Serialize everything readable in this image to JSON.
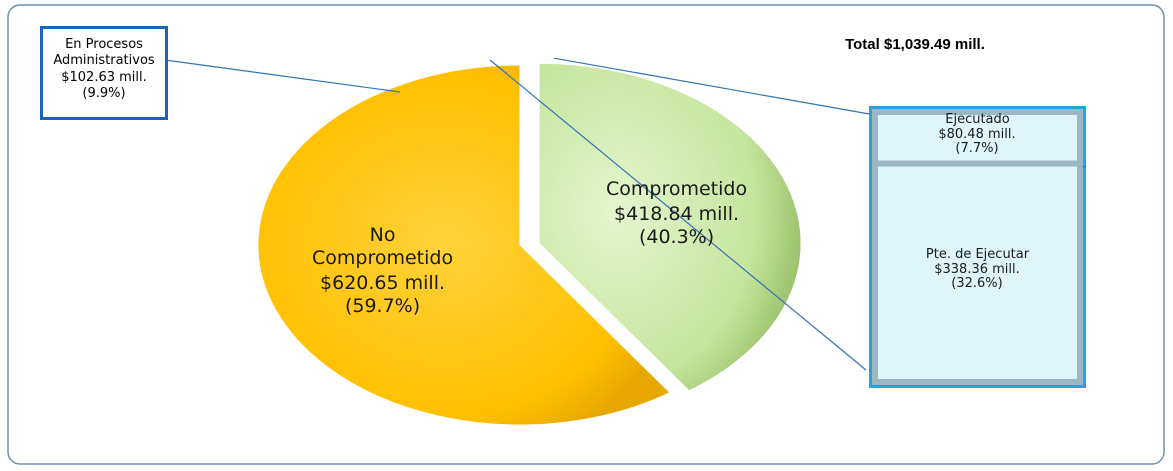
{
  "chart_data": [
    {
      "type": "pie",
      "title": "Total $1,039.49 mill.",
      "categories": [
        "No Comprometido",
        "Comprometido"
      ],
      "values": [
        59.7,
        40.3
      ],
      "value_labels": [
        "$620.65 mill. (59.7%)",
        "$418.84 mill. (40.3%)"
      ],
      "colors": [
        "#ffc000",
        "#c6e59e"
      ],
      "annotation": "En Procesos Administrativos $102.63 mill. (9.9%)"
    },
    {
      "type": "bar",
      "categories": [
        "Ejecutado",
        "Pte. de Ejecutar"
      ],
      "values": [
        7.7,
        32.6
      ],
      "value_labels": [
        "$80.48 mill. (7.7%)",
        "$338.36 mill. (32.6%)"
      ],
      "color": "#dff5fa"
    }
  ]
}
